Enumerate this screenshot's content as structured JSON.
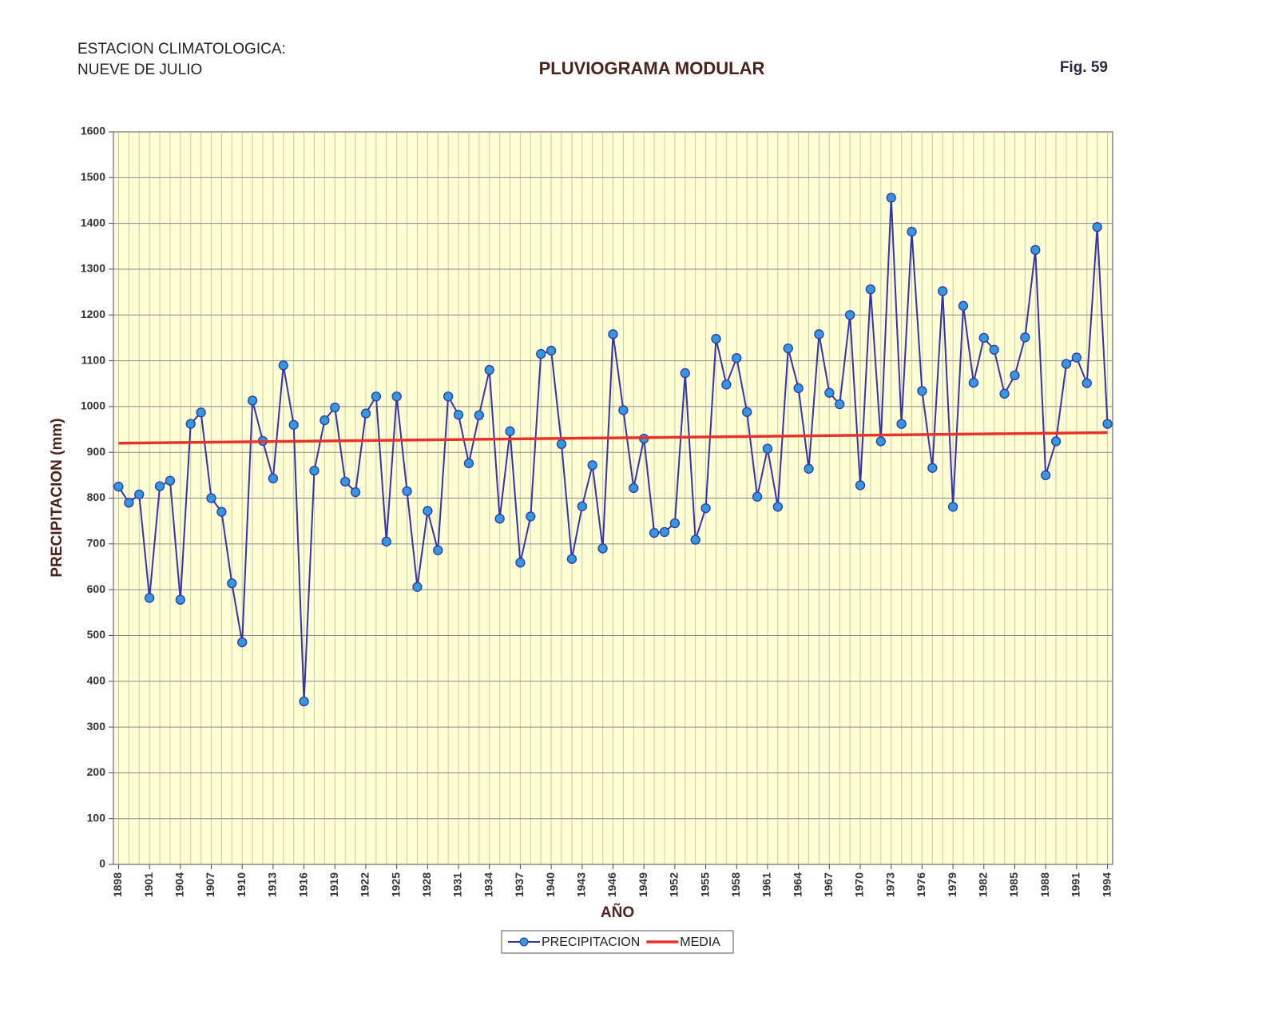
{
  "chart_data": {
    "type": "line",
    "station": [
      "ESTACION CLIMATOLOGICA:",
      "NUEVE DE JULIO"
    ],
    "title": "PLUVIOGRAMA MODULAR",
    "figure": "Fig. 59",
    "xlabel": "AÑO",
    "ylabel": "PRECIPITACION (mm)",
    "x": [
      1898,
      1899,
      1900,
      1901,
      1902,
      1903,
      1904,
      1905,
      1906,
      1907,
      1908,
      1909,
      1910,
      1911,
      1912,
      1913,
      1914,
      1915,
      1916,
      1917,
      1918,
      1919,
      1920,
      1921,
      1922,
      1923,
      1924,
      1925,
      1926,
      1927,
      1928,
      1929,
      1930,
      1931,
      1932,
      1933,
      1934,
      1935,
      1936,
      1937,
      1938,
      1939,
      1940,
      1941,
      1942,
      1943,
      1944,
      1945,
      1946,
      1947,
      1948,
      1949,
      1950,
      1951,
      1952,
      1953,
      1954,
      1955,
      1956,
      1957,
      1958,
      1959,
      1960,
      1961,
      1962,
      1963,
      1964,
      1965,
      1966,
      1967,
      1968,
      1969,
      1970,
      1971,
      1972,
      1973,
      1974,
      1975,
      1976,
      1977,
      1978,
      1979,
      1980,
      1981,
      1982,
      1983,
      1984,
      1985,
      1986,
      1987,
      1988,
      1989,
      1990,
      1991,
      1992,
      1993,
      1994
    ],
    "series": [
      {
        "name": "PRECIPITACION",
        "color": "#3333aa",
        "marker_color": "#3399dd",
        "values": [
          825,
          790,
          808,
          582,
          826,
          838,
          578,
          962,
          987,
          800,
          770,
          614,
          485,
          1013,
          925,
          843,
          1090,
          960,
          356,
          860,
          970,
          998,
          836,
          813,
          985,
          1022,
          705,
          1022,
          815,
          606,
          772,
          686,
          1022,
          982,
          876,
          981,
          1080,
          755,
          946,
          659,
          760,
          1115,
          1122,
          918,
          667,
          782,
          872,
          690,
          1158,
          992,
          822,
          930,
          724,
          726,
          745,
          1073,
          709,
          778,
          1148,
          1048,
          1106,
          988,
          803,
          908,
          781,
          1127,
          1040,
          864,
          1158,
          1030,
          1005,
          1200,
          828,
          1256,
          924,
          1456,
          962,
          1382,
          1034,
          866,
          1252,
          781,
          1220,
          1052,
          1150,
          1124,
          1028,
          1068,
          1151,
          1342,
          850,
          924,
          1093,
          1107,
          1051,
          1392,
          962
        ]
      },
      {
        "name": "MEDIA",
        "color": "#e8332a",
        "x": [
          1898,
          1994
        ],
        "values": [
          920,
          943
        ]
      }
    ],
    "xlim": [
      1897.5,
      1994.5
    ],
    "ylim": [
      0,
      1600
    ],
    "yticks": [
      0,
      100,
      200,
      300,
      400,
      500,
      600,
      700,
      800,
      900,
      1000,
      1100,
      1200,
      1300,
      1400,
      1500,
      1600
    ],
    "xticks": [
      1898,
      1901,
      1904,
      1907,
      1910,
      1913,
      1916,
      1919,
      1922,
      1925,
      1928,
      1931,
      1934,
      1937,
      1940,
      1943,
      1946,
      1949,
      1952,
      1955,
      1958,
      1961,
      1964,
      1967,
      1970,
      1973,
      1976,
      1979,
      1982,
      1985,
      1988,
      1991,
      1994
    ],
    "grid": true,
    "legend": "bottom"
  }
}
